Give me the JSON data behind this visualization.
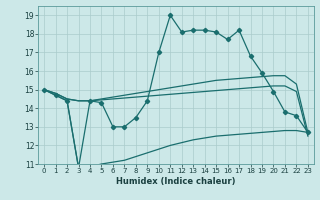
{
  "xlabel": "Humidex (Indice chaleur)",
  "ylabel": "",
  "bg_color": "#cce8e8",
  "grid_color": "#aacccc",
  "line_color": "#1a6e6e",
  "xlim": [
    -0.5,
    23.5
  ],
  "ylim": [
    11,
    19.5
  ],
  "yticks": [
    11,
    12,
    13,
    14,
    15,
    16,
    17,
    18,
    19
  ],
  "xticks": [
    0,
    1,
    2,
    3,
    4,
    5,
    6,
    7,
    8,
    9,
    10,
    11,
    12,
    13,
    14,
    15,
    16,
    17,
    18,
    19,
    20,
    21,
    22,
    23
  ],
  "line1": [
    15.0,
    14.7,
    14.4,
    10.8,
    14.4,
    14.3,
    13.0,
    13.0,
    13.5,
    14.4,
    17.0,
    19.0,
    18.1,
    18.2,
    18.2,
    18.1,
    17.7,
    18.2,
    16.8,
    15.9,
    14.9,
    13.8,
    13.6,
    12.7
  ],
  "line2": [
    15.0,
    14.8,
    14.5,
    14.4,
    14.4,
    14.5,
    14.6,
    14.7,
    14.8,
    14.9,
    15.0,
    15.1,
    15.2,
    15.3,
    15.4,
    15.5,
    15.55,
    15.6,
    15.65,
    15.7,
    15.75,
    15.75,
    15.3,
    12.7
  ],
  "line3": [
    15.0,
    14.8,
    14.5,
    14.4,
    14.4,
    14.45,
    14.5,
    14.55,
    14.6,
    14.65,
    14.7,
    14.75,
    14.8,
    14.85,
    14.9,
    14.95,
    15.0,
    15.05,
    15.1,
    15.15,
    15.2,
    15.2,
    14.9,
    12.5
  ],
  "line4": [
    15.0,
    14.7,
    14.4,
    10.8,
    10.85,
    11.0,
    11.1,
    11.2,
    11.4,
    11.6,
    11.8,
    12.0,
    12.15,
    12.3,
    12.4,
    12.5,
    12.55,
    12.6,
    12.65,
    12.7,
    12.75,
    12.8,
    12.8,
    12.7
  ]
}
